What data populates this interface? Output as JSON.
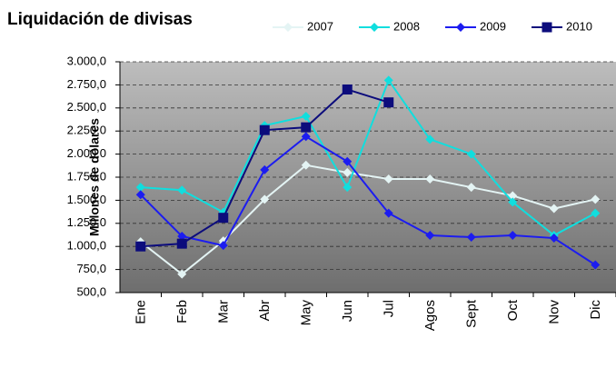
{
  "chart_data": {
    "type": "line",
    "title": "Liquidación de divisas",
    "y_label": "Millones de dólares",
    "categories": [
      "Ene",
      "Feb",
      "Mar",
      "Abr",
      "May",
      "Jun",
      "Jul",
      "Agos",
      "Sept",
      "Oct",
      "Nov",
      "Dic"
    ],
    "series": [
      {
        "name": "2007",
        "color": "#e4f4f4",
        "marker": "diamond",
        "values": [
          1050,
          700,
          1060,
          1510,
          1880,
          1800,
          1730,
          1730,
          1640,
          1550,
          1410,
          1510
        ]
      },
      {
        "name": "2008",
        "color": "#10dede",
        "marker": "diamond",
        "values": [
          1640,
          1610,
          1370,
          2310,
          2410,
          1640,
          2800,
          2160,
          2000,
          1480,
          1120,
          1360
        ]
      },
      {
        "name": "2009",
        "color": "#1c1cf0",
        "marker": "diamond",
        "values": [
          1560,
          1110,
          1010,
          1830,
          2190,
          1920,
          1360,
          1120,
          1100,
          1120,
          1090,
          800
        ]
      },
      {
        "name": "2010",
        "color": "#0c0c7c",
        "marker": "square",
        "values": [
          1000,
          1030,
          1310,
          2260,
          2290,
          2700,
          2560,
          null,
          null,
          null,
          null,
          null
        ]
      }
    ],
    "ylim": [
      500,
      3000
    ],
    "yticks": [
      {
        "value": 500,
        "label": "500,0"
      },
      {
        "value": 750,
        "label": "750,0"
      },
      {
        "value": 1000,
        "label": "1.000,0"
      },
      {
        "value": 1250,
        "label": "1.250,0"
      },
      {
        "value": 1500,
        "label": "1.500,0"
      },
      {
        "value": 1750,
        "label": "1.750,0"
      },
      {
        "value": 2000,
        "label": "2.000,0"
      },
      {
        "value": 2250,
        "label": "2.250,0"
      },
      {
        "value": 2500,
        "label": "2.500,0"
      },
      {
        "value": 2750,
        "label": "2.750,0"
      },
      {
        "value": 3000,
        "label": "3.000,0"
      }
    ],
    "grid": true,
    "legend": "top-right"
  }
}
